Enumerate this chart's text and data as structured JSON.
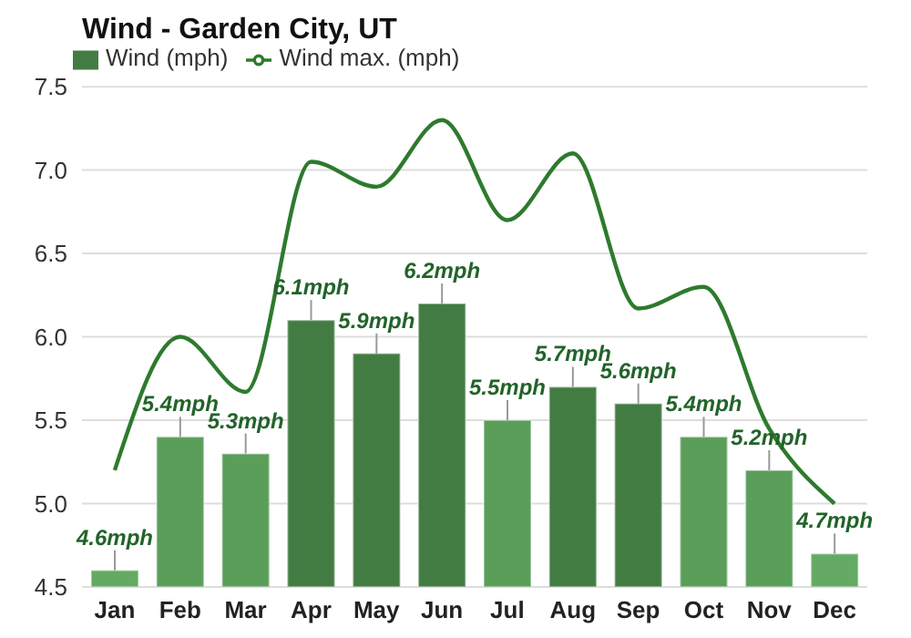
{
  "chart_data": {
    "type": "bar",
    "title": "Wind - Garden City, UT",
    "categories": [
      "Jan",
      "Feb",
      "Mar",
      "Apr",
      "May",
      "Jun",
      "Jul",
      "Aug",
      "Sep",
      "Oct",
      "Nov",
      "Dec"
    ],
    "series": [
      {
        "name": "Wind (mph)",
        "color": "#437c43",
        "colors": [
          "#64aa64",
          "#5a9e5a",
          "#5a9e5a",
          "#437c43",
          "#437c43",
          "#437c43",
          "#5a9e5a",
          "#437c43",
          "#437c43",
          "#5a9e5a",
          "#5a9e5a",
          "#64aa64"
        ],
        "values": [
          4.6,
          5.4,
          5.3,
          6.1,
          5.9,
          6.2,
          5.5,
          5.7,
          5.6,
          5.4,
          5.2,
          4.7
        ],
        "value_labels": [
          "4.6mph",
          "5.4mph",
          "5.3mph",
          "6.1mph",
          "5.9mph",
          "6.2mph",
          "5.5mph",
          "5.7mph",
          "5.6mph",
          "5.4mph",
          "5.2mph",
          "4.7mph"
        ]
      },
      {
        "type": "line",
        "name": "Wind max. (mph)",
        "color": "#2e7a2e",
        "values": [
          5.2,
          6.0,
          5.67,
          7.05,
          6.9,
          7.3,
          6.7,
          7.1,
          6.17,
          6.3,
          5.45,
          5.0
        ]
      }
    ],
    "ylim": [
      4.5,
      7.5
    ],
    "yticks": [
      4.5,
      {
        "value": 5,
        "label": "5.0"
      },
      5.5,
      {
        "value": 6,
        "label": "6.0"
      },
      6.5,
      {
        "value": 7,
        "label": "7.0"
      },
      7.5
    ],
    "grid": "y",
    "legend": "top left",
    "marker": "none"
  }
}
